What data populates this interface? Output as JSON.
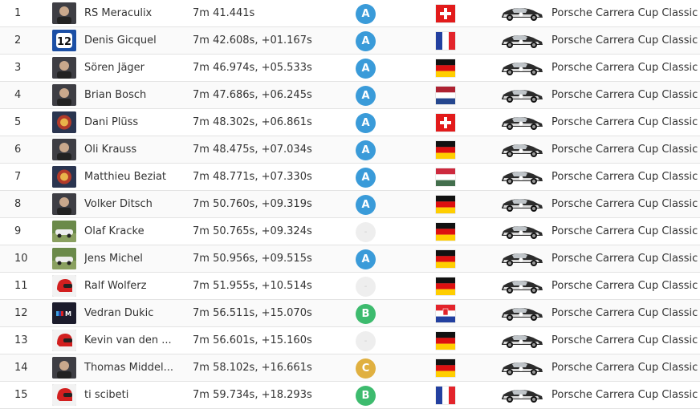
{
  "class_colors": {
    "A": "#3a9bd9",
    "B": "#3dbb6e",
    "C": "#e0b040",
    "-": "#eeeeee"
  },
  "results": [
    {
      "pos": "1",
      "name": "RS Meraculix",
      "time": "7m 41.441s",
      "class": "A",
      "flag": "switzerland",
      "car": "Porsche Carrera Cup Classic",
      "avatar": "photo-avatar"
    },
    {
      "pos": "2",
      "name": "Denis Gicquel",
      "time": "7m 42.608s, +01.167s",
      "class": "A",
      "flag": "france",
      "car": "Porsche Carrera Cup Classic",
      "avatar": "number-12-avatar"
    },
    {
      "pos": "3",
      "name": "Sören Jäger",
      "time": "7m 46.974s, +05.533s",
      "class": "A",
      "flag": "germany",
      "car": "Porsche Carrera Cup Classic",
      "avatar": "photo-avatar"
    },
    {
      "pos": "4",
      "name": "Brian Bosch",
      "time": "7m 47.686s, +06.245s",
      "class": "A",
      "flag": "netherlands",
      "car": "Porsche Carrera Cup Classic",
      "avatar": "photo-avatar"
    },
    {
      "pos": "5",
      "name": "Dani Plüss",
      "time": "7m 48.302s, +06.861s",
      "class": "A",
      "flag": "switzerland",
      "car": "Porsche Carrera Cup Classic",
      "avatar": "logo-avatar"
    },
    {
      "pos": "6",
      "name": "Oli Krauss",
      "time": "7m 48.475s, +07.034s",
      "class": "A",
      "flag": "germany",
      "car": "Porsche Carrera Cup Classic",
      "avatar": "photo-avatar"
    },
    {
      "pos": "7",
      "name": "Matthieu Beziat",
      "time": "7m 48.771s, +07.330s",
      "class": "A",
      "flag": "hungary",
      "car": "Porsche Carrera Cup Classic",
      "avatar": "logo-avatar"
    },
    {
      "pos": "8",
      "name": "Volker Ditsch",
      "time": "7m 50.760s, +09.319s",
      "class": "A",
      "flag": "germany",
      "car": "Porsche Carrera Cup Classic",
      "avatar": "photo-avatar"
    },
    {
      "pos": "9",
      "name": "Olaf Kracke",
      "time": "7m 50.765s, +09.324s",
      "class": "-",
      "flag": "germany",
      "car": "Porsche Carrera Cup Classic",
      "avatar": "car-avatar"
    },
    {
      "pos": "10",
      "name": "Jens Michel",
      "time": "7m 50.956s, +09.515s",
      "class": "A",
      "flag": "germany",
      "car": "Porsche Carrera Cup Classic",
      "avatar": "car-avatar"
    },
    {
      "pos": "11",
      "name": "Ralf Wolferz",
      "time": "7m 51.955s, +10.514s",
      "class": "-",
      "flag": "germany",
      "car": "Porsche Carrera Cup Classic",
      "avatar": "helmet-avatar"
    },
    {
      "pos": "12",
      "name": "Vedran Dukic",
      "time": "7m 56.511s, +15.070s",
      "class": "B",
      "flag": "croatia",
      "car": "Porsche Carrera Cup Classic",
      "avatar": "m-logo-avatar"
    },
    {
      "pos": "13",
      "name": "Kevin van den ...",
      "time": "7m 56.601s, +15.160s",
      "class": "-",
      "flag": "germany",
      "car": "Porsche Carrera Cup Classic",
      "avatar": "helmet-avatar"
    },
    {
      "pos": "14",
      "name": "Thomas Middel...",
      "time": "7m 58.102s, +16.661s",
      "class": "C",
      "flag": "germany",
      "car": "Porsche Carrera Cup Classic",
      "avatar": "photo-avatar"
    },
    {
      "pos": "15",
      "name": "ti scibeti",
      "time": "7m 59.734s, +18.293s",
      "class": "B",
      "flag": "france",
      "car": "Porsche Carrera Cup Classic",
      "avatar": "helmet-avatar"
    }
  ]
}
